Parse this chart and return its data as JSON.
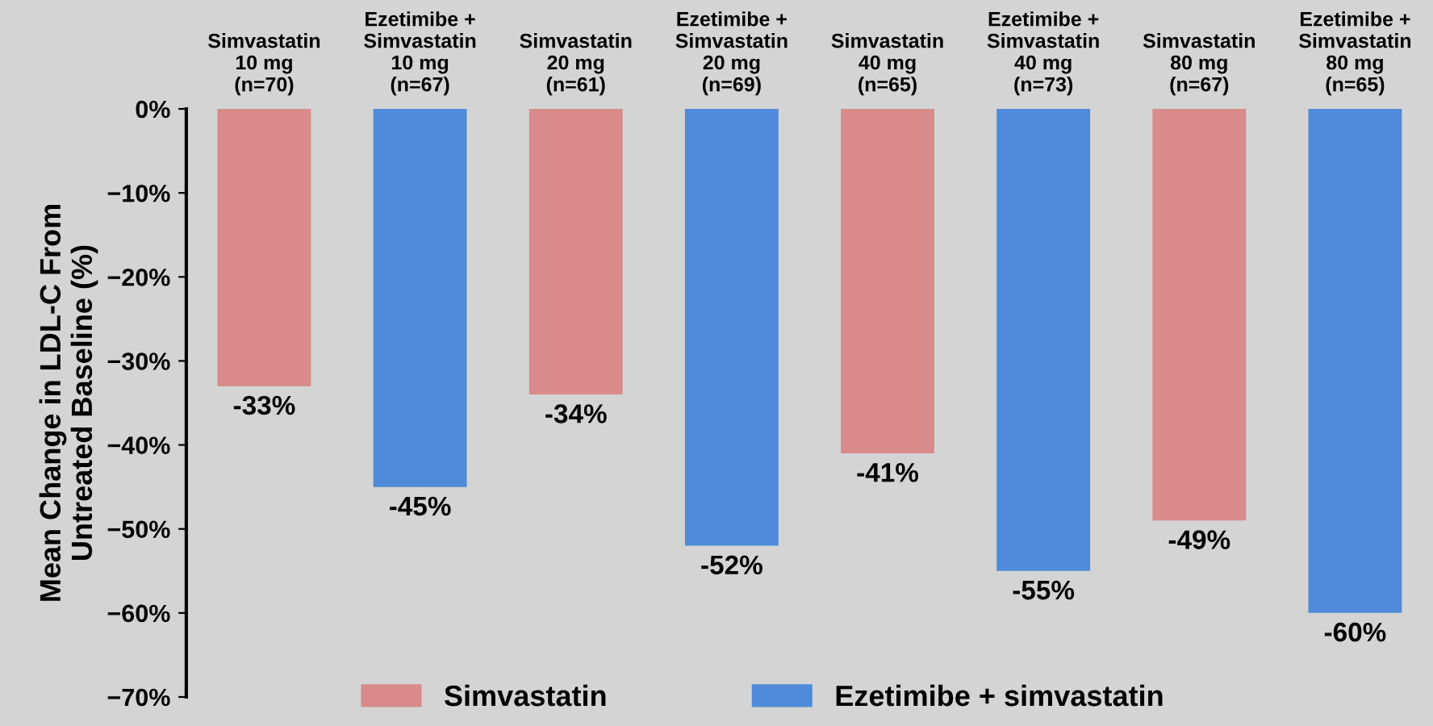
{
  "chart_data": {
    "type": "bar",
    "ylabel": "Mean Change in LDL-C From\nUntreated Baseline (%)",
    "categories": [
      "Simvastatin\n10 mg\n(n=70)",
      "Ezetimibe +\nSimvastatin\n10 mg\n(n=67)",
      "Simvastatin\n20 mg\n(n=61)",
      "Ezetimibe +\nSimvastatin\n20 mg\n(n=69)",
      "Simvastatin\n40 mg\n(n=65)",
      "Ezetimibe +\nSimvastatin\n40 mg\n(n=73)",
      "Simvastatin\n80 mg\n(n=67)",
      "Ezetimibe +\nSimvastatin\n80 mg\n(n=65)"
    ],
    "series": [
      {
        "name": "Simvastatin",
        "color": "#d98a8a",
        "values": [
          -33,
          null,
          -34,
          null,
          -41,
          null,
          -49,
          null
        ],
        "value_labels": [
          "-33%",
          null,
          "-34%",
          null,
          "-41%",
          null,
          "-49%",
          null
        ]
      },
      {
        "name": "Ezetimibe + simvastatin",
        "color": "#4f8bd9",
        "values": [
          null,
          -45,
          null,
          -52,
          null,
          -55,
          null,
          -60
        ],
        "value_labels": [
          null,
          "-45%",
          null,
          "-52%",
          null,
          "-55%",
          null,
          "-60%"
        ]
      }
    ],
    "ylim": [
      -70,
      0
    ],
    "yticks": [
      {
        "value": 0,
        "label": "0%"
      },
      {
        "value": -10,
        "label": "−10%"
      },
      {
        "value": -20,
        "label": "−20%"
      },
      {
        "value": -30,
        "label": "−30%"
      },
      {
        "value": -40,
        "label": "−40%"
      },
      {
        "value": -50,
        "label": "−50%"
      },
      {
        "value": -60,
        "label": "−60%"
      },
      {
        "value": -70,
        "label": "−70%"
      }
    ],
    "grid": false,
    "legend": "bottom"
  }
}
